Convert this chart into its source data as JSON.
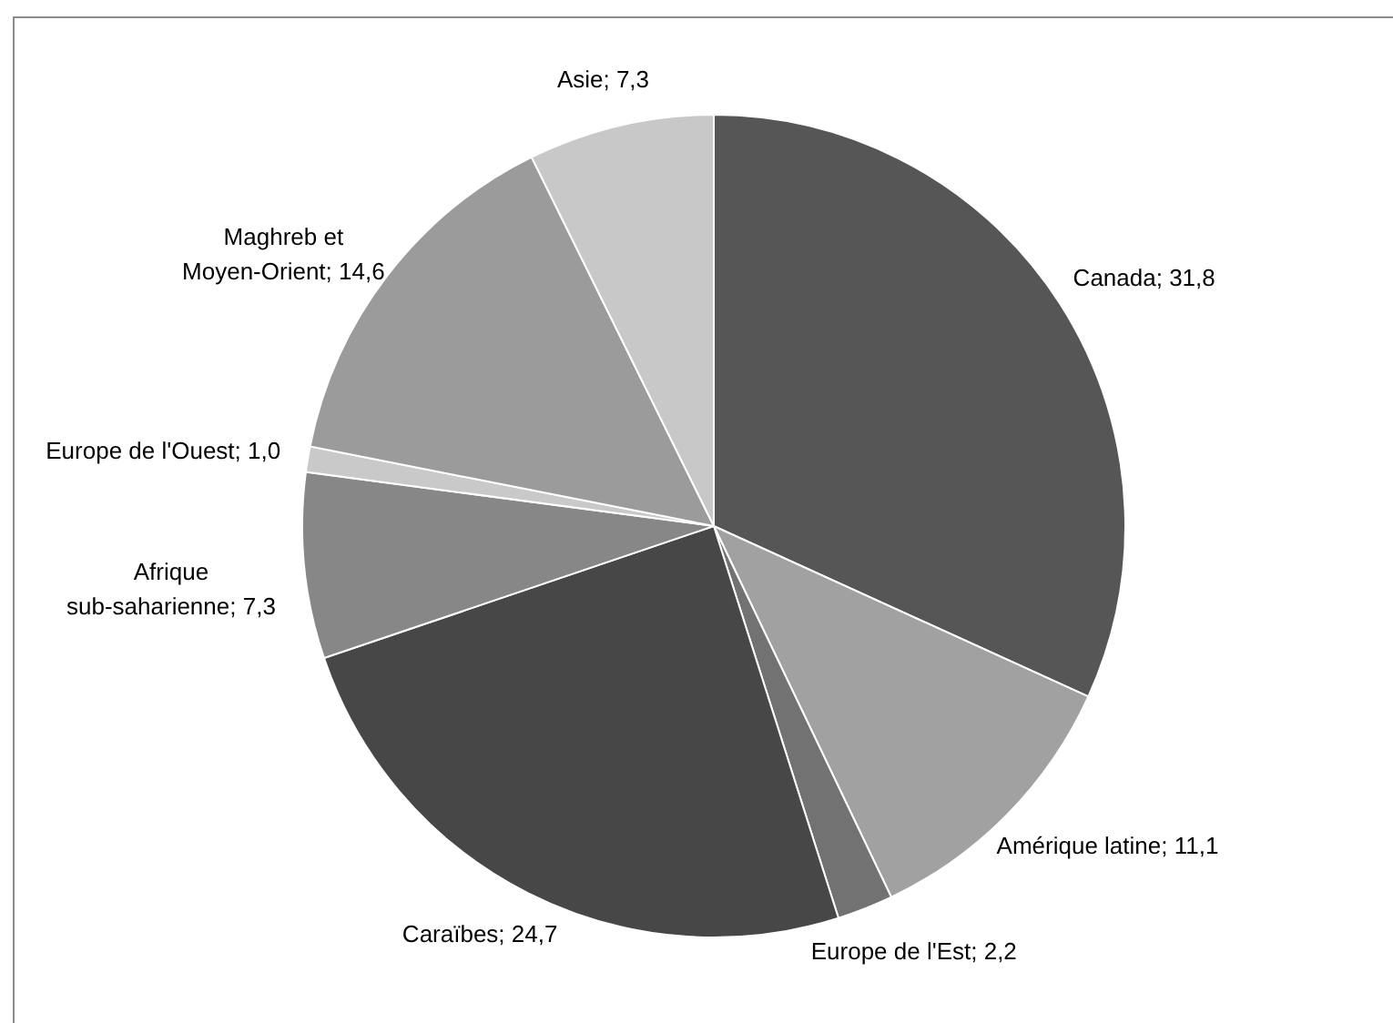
{
  "chart_data": {
    "type": "pie",
    "categories": [
      "Canada",
      "Amérique latine",
      "Europe de l'Est",
      "Caraïbes",
      "Afrique sub-saharienne",
      "Europe de l'Ouest",
      "Maghreb et Moyen-Orient",
      "Asie"
    ],
    "values": [
      31.8,
      11.1,
      2.2,
      24.7,
      7.3,
      1.0,
      14.6,
      7.3
    ],
    "value_labels": [
      "31,8",
      "11,1",
      "2,2",
      "24,7",
      "7,3",
      "1,0",
      "14,6",
      "7,3"
    ],
    "colors": [
      "#565656",
      "#a1a1a1",
      "#727272",
      "#474747",
      "#878787",
      "#c9c9c9",
      "#9b9b9b",
      "#c8c8c8"
    ]
  }
}
